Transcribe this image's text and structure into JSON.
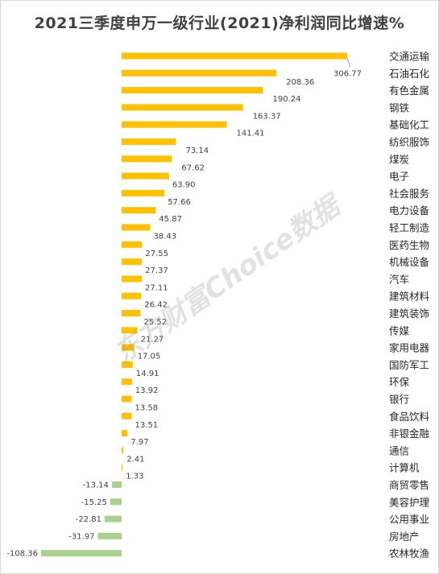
{
  "chart_data": {
    "type": "bar",
    "orientation": "horizontal",
    "title": "2021三季度申万一级行业(2021)净利润同比增速%",
    "categories": [
      "交通运输",
      "石油石化",
      "有色金属",
      "钢铁",
      "基础化工",
      "纺织服饰",
      "煤炭",
      "电子",
      "社会服务",
      "电力设备",
      "轻工制造",
      "医药生物",
      "机械设备",
      "汽车",
      "建筑材料",
      "建筑装饰",
      "传媒",
      "家用电器",
      "国防军工",
      "环保",
      "银行",
      "食品饮料",
      "非银金融",
      "通信",
      "计算机",
      "商贸零售",
      "美容护理",
      "公用事业",
      "房地产",
      "农林牧渔"
    ],
    "values": [
      306.77,
      208.36,
      190.24,
      163.37,
      141.41,
      73.14,
      67.62,
      63.9,
      57.66,
      45.87,
      38.43,
      27.55,
      27.37,
      27.11,
      26.42,
      25.52,
      21.27,
      17.05,
      14.91,
      13.92,
      13.58,
      13.51,
      7.97,
      2.41,
      1.33,
      -13.14,
      -15.25,
      -22.81,
      -31.97,
      -108.36
    ],
    "labels": [
      "306.77",
      "208.36",
      "190.24",
      "163.37",
      "141.41",
      "73.14",
      "67.62",
      "63.90",
      "57.66",
      "45.87",
      "38.43",
      "27.55",
      "27.37",
      "27.11",
      "26.42",
      "25.52",
      "21.27",
      "17.05",
      "14.91",
      "13.92",
      "13.58",
      "13.51",
      "7.97",
      "2.41",
      "1.33",
      "-13.14",
      "-15.25",
      "-22.81",
      "-31.97",
      "-108.36"
    ],
    "colors": {
      "positive": "#FFC000",
      "negative": "#A9D18E",
      "label": "#404040",
      "leader": "#999999"
    },
    "xlim": [
      -108.36,
      306.77
    ],
    "grid": false,
    "legend": "none"
  },
  "watermark": "东方财富Choice数据"
}
